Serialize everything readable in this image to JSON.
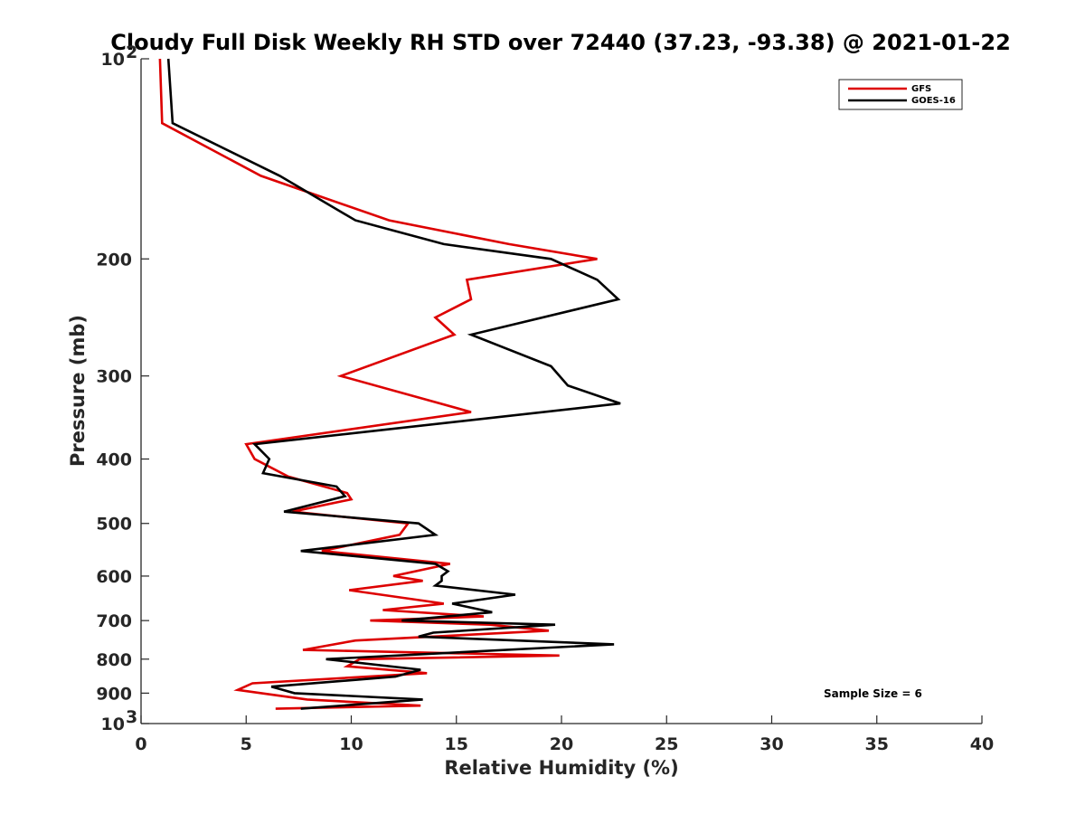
{
  "chart_data": {
    "type": "line",
    "title": "Cloudy Full Disk Weekly RH STD over 72440 (37.23, -93.38) @ 2021-01-22",
    "xlabel": "Relative Humidity (%)",
    "ylabel": "Pressure (mb)",
    "xlim": [
      0,
      40
    ],
    "ylim": [
      100,
      1000
    ],
    "y_scale": "log",
    "y_reversed": true,
    "x_ticks": [
      0,
      5,
      10,
      15,
      20,
      25,
      30,
      35,
      40
    ],
    "y_ticks": [
      {
        "value": 100,
        "label": "10",
        "sup": "2"
      },
      {
        "value": 200,
        "label": "200",
        "sup": ""
      },
      {
        "value": 300,
        "label": "300",
        "sup": ""
      },
      {
        "value": 400,
        "label": "400",
        "sup": ""
      },
      {
        "value": 500,
        "label": "500",
        "sup": ""
      },
      {
        "value": 600,
        "label": "600",
        "sup": ""
      },
      {
        "value": 700,
        "label": "700",
        "sup": ""
      },
      {
        "value": 800,
        "label": "800",
        "sup": ""
      },
      {
        "value": 900,
        "label": "900",
        "sup": ""
      },
      {
        "value": 1000,
        "label": "10",
        "sup": "3"
      }
    ],
    "grid": false,
    "legend_position": "top-right",
    "annotation": "Sample Size = 6",
    "series": [
      {
        "name": "GFS",
        "color": "#dd0000",
        "points": [
          [
            0.9,
            100
          ],
          [
            1.0,
            125
          ],
          [
            5.7,
            150
          ],
          [
            11.8,
            175
          ],
          [
            17.5,
            190
          ],
          [
            21.7,
            200
          ],
          [
            15.5,
            215
          ],
          [
            15.7,
            230
          ],
          [
            14.0,
            245
          ],
          [
            14.9,
            260
          ],
          [
            9.5,
            300
          ],
          [
            15.7,
            340
          ],
          [
            5.0,
            380
          ],
          [
            5.4,
            400
          ],
          [
            7.0,
            425
          ],
          [
            9.8,
            450
          ],
          [
            10.0,
            460
          ],
          [
            7.2,
            480
          ],
          [
            12.7,
            500
          ],
          [
            12.3,
            520
          ],
          [
            8.6,
            550
          ],
          [
            14.7,
            575
          ],
          [
            12.0,
            600
          ],
          [
            13.4,
            610
          ],
          [
            9.9,
            630
          ],
          [
            14.4,
            660
          ],
          [
            11.5,
            675
          ],
          [
            16.3,
            690
          ],
          [
            10.9,
            700
          ],
          [
            16.6,
            710
          ],
          [
            19.4,
            725
          ],
          [
            10.2,
            750
          ],
          [
            7.7,
            775
          ],
          [
            19.9,
            790
          ],
          [
            10.4,
            800
          ],
          [
            9.8,
            820
          ],
          [
            12.7,
            835
          ],
          [
            13.6,
            840
          ],
          [
            5.3,
            870
          ],
          [
            4.6,
            890
          ],
          [
            7.9,
            920
          ],
          [
            13.3,
            940
          ],
          [
            6.4,
            950
          ]
        ]
      },
      {
        "name": "GOES-16",
        "color": "#000000",
        "points": [
          [
            1.3,
            100
          ],
          [
            1.5,
            125
          ],
          [
            6.6,
            150
          ],
          [
            10.2,
            175
          ],
          [
            14.4,
            190
          ],
          [
            19.5,
            200
          ],
          [
            21.7,
            215
          ],
          [
            22.7,
            230
          ],
          [
            15.7,
            260
          ],
          [
            19.5,
            290
          ],
          [
            20.3,
            310
          ],
          [
            22.8,
            330
          ],
          [
            5.4,
            380
          ],
          [
            6.1,
            400
          ],
          [
            5.8,
            420
          ],
          [
            9.3,
            440
          ],
          [
            9.7,
            455
          ],
          [
            6.8,
            480
          ],
          [
            13.2,
            500
          ],
          [
            14.0,
            520
          ],
          [
            7.6,
            550
          ],
          [
            14.0,
            575
          ],
          [
            14.6,
            590
          ],
          [
            14.3,
            600
          ],
          [
            14.3,
            610
          ],
          [
            14.0,
            620
          ],
          [
            17.8,
            640
          ],
          [
            14.8,
            660
          ],
          [
            16.7,
            680
          ],
          [
            12.4,
            700
          ],
          [
            19.7,
            710
          ],
          [
            13.9,
            730
          ],
          [
            13.2,
            740
          ],
          [
            22.5,
            760
          ],
          [
            8.8,
            800
          ],
          [
            13.3,
            830
          ],
          [
            12.1,
            850
          ],
          [
            6.2,
            880
          ],
          [
            7.3,
            900
          ],
          [
            13.4,
            920
          ],
          [
            7.6,
            950
          ]
        ]
      }
    ]
  }
}
